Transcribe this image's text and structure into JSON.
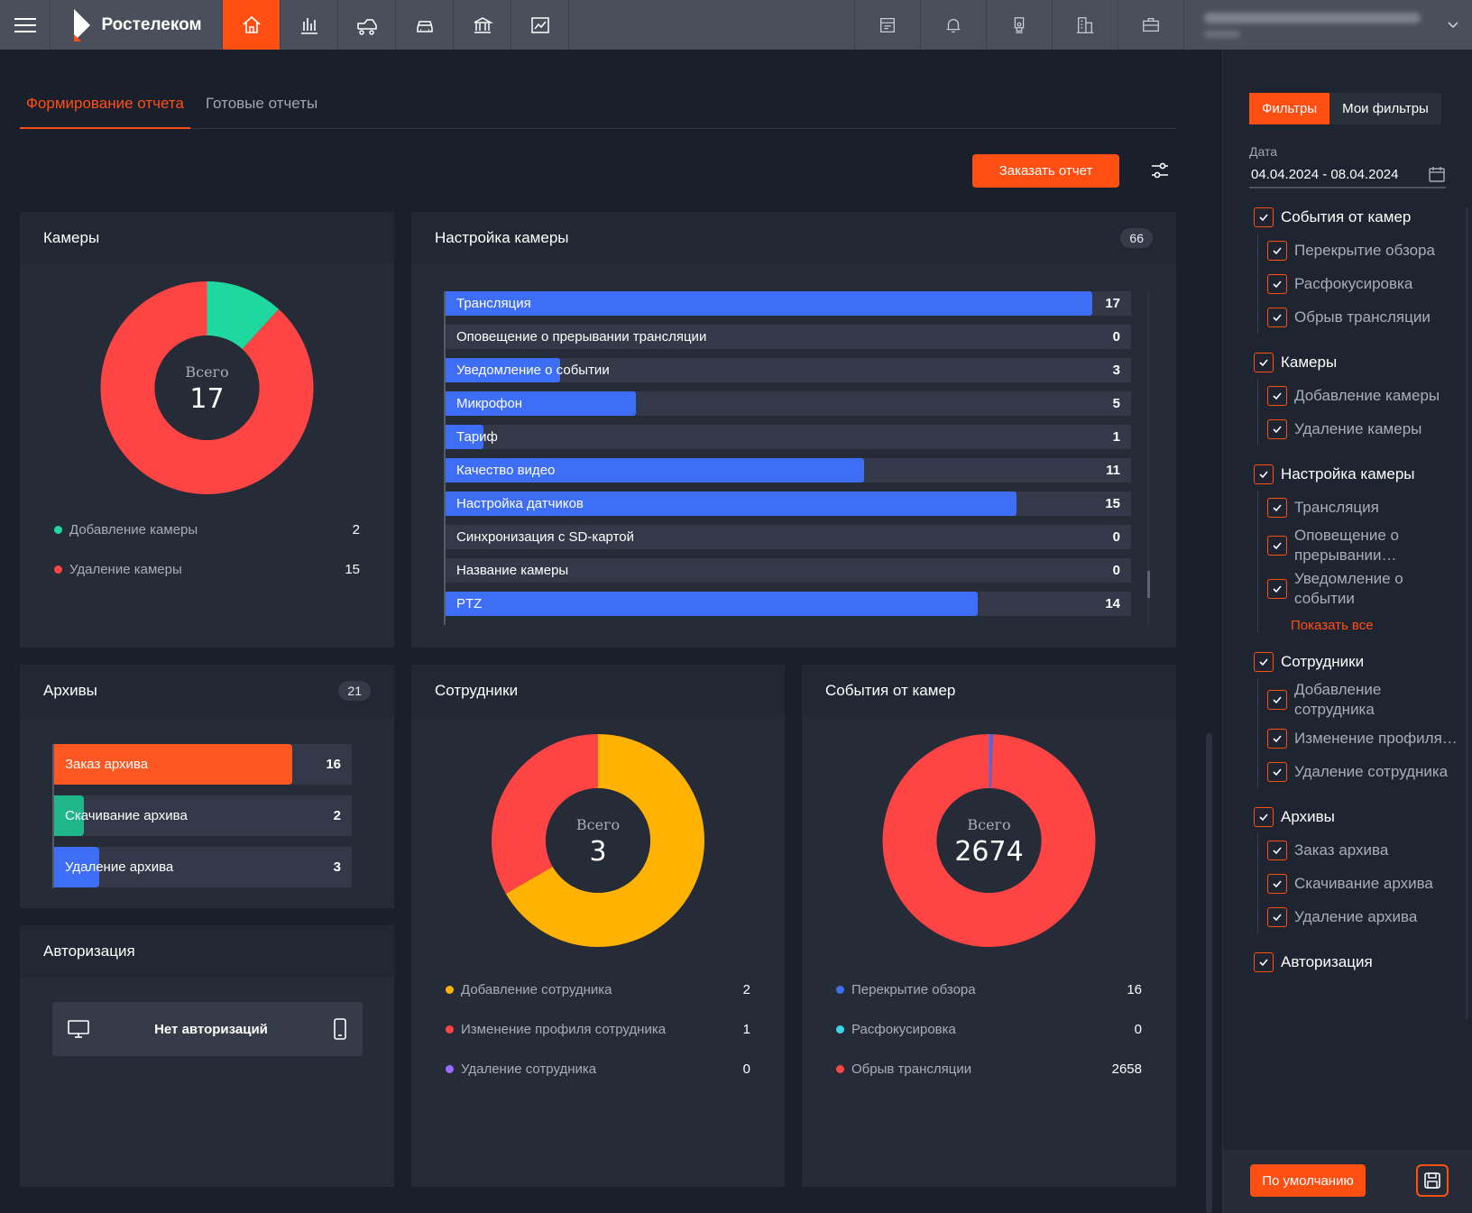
{
  "brand": {
    "name": "Ростелеком"
  },
  "nav": [
    {
      "icon": "home-icon",
      "active": true
    },
    {
      "icon": "bar-chart-icon",
      "active": false
    },
    {
      "icon": "truck-icon",
      "active": false
    },
    {
      "icon": "car-icon",
      "active": false
    },
    {
      "icon": "bank-icon",
      "active": false
    },
    {
      "icon": "trend-chart-icon",
      "active": false
    }
  ],
  "tools": [
    "calendar-card-icon",
    "bell-icon",
    "camera-icon",
    "building-icon",
    "briefcase-icon"
  ],
  "tabs": {
    "build": "Формирование отчета",
    "ready": "Готовые отчеты"
  },
  "order_button": "Заказать отчет",
  "cameras": {
    "title": "Камеры",
    "center_label": "Всего",
    "total": "17",
    "legend": [
      {
        "label": "Добавление камеры",
        "value": "2",
        "color": "#1fd8a0"
      },
      {
        "label": "Удаление камеры",
        "value": "15",
        "color": "#ff4444"
      }
    ]
  },
  "camera_settings": {
    "title": "Настройка камеры",
    "count": "66",
    "bars": [
      {
        "label": "Трансляция",
        "value": 17
      },
      {
        "label": "Оповещение о прерывании трансляции",
        "value": 0
      },
      {
        "label": "Уведомление о событии",
        "value": 3
      },
      {
        "label": "Микрофон",
        "value": 5
      },
      {
        "label": "Тариф",
        "value": 1
      },
      {
        "label": "Качество видео",
        "value": 11
      },
      {
        "label": "Настройка датчиков",
        "value": 15
      },
      {
        "label": "Синхронизация с SD-картой",
        "value": 0
      },
      {
        "label": "Название камеры",
        "value": 0
      },
      {
        "label": "PTZ",
        "value": 14
      }
    ]
  },
  "archives": {
    "title": "Архивы",
    "count": "21",
    "bars": [
      {
        "label": "Заказ архива",
        "value": 16,
        "color": "#ff5722"
      },
      {
        "label": "Скачивание архива",
        "value": 2,
        "color": "#1fb78a"
      },
      {
        "label": "Удаление архива",
        "value": 3,
        "color": "#3d6ef5"
      }
    ]
  },
  "auth": {
    "title": "Авторизация",
    "empty": "Нет авторизаций"
  },
  "employees": {
    "title": "Сотрудники",
    "center_label": "Всего",
    "total": "3",
    "legend": [
      {
        "label": "Добавление сотрудника",
        "value": "2",
        "color": "#ffb300"
      },
      {
        "label": "Изменение профиля сотрудника",
        "value": "1",
        "color": "#ff4444"
      },
      {
        "label": "Удаление сотрудника",
        "value": "0",
        "color": "#9b6bff"
      }
    ]
  },
  "events": {
    "title": "События от камер",
    "center_label": "Всего",
    "total": "2674",
    "legend": [
      {
        "label": "Перекрытие обзора",
        "value": "16",
        "color": "#3d6ef5"
      },
      {
        "label": "Расфокусировка",
        "value": "0",
        "color": "#3dd6e8"
      },
      {
        "label": "Обрыв трансляции",
        "value": "2658",
        "color": "#ff4444"
      }
    ]
  },
  "sidebar": {
    "tab_filters": "Фильтры",
    "tab_my_filters": "Мои фильтры",
    "date_label": "Дата",
    "date_value": "04.04.2024 - 08.04.2024",
    "show_all": "Показать все",
    "default_button": "По умолчанию",
    "groups": [
      {
        "label": "События от камер",
        "children": [
          "Перекрытие обзора",
          "Расфокусировка",
          "Обрыв трансляции"
        ]
      },
      {
        "label": "Камеры",
        "children": [
          "Добавление камеры",
          "Удаление камеры"
        ]
      },
      {
        "label": "Настройка камеры",
        "children": [
          "Трансляция",
          "Оповещение о прерывании…",
          "Уведомление о событии"
        ],
        "show_all": true
      },
      {
        "label": "Сотрудники",
        "children": [
          "Добавление сотрудника",
          "Изменение профиля…",
          "Удаление сотрудника"
        ]
      },
      {
        "label": "Архивы",
        "children": [
          "Заказ архива",
          "Скачивание архива",
          "Удаление архива"
        ]
      },
      {
        "label": "Авторизация",
        "children": []
      }
    ]
  }
}
